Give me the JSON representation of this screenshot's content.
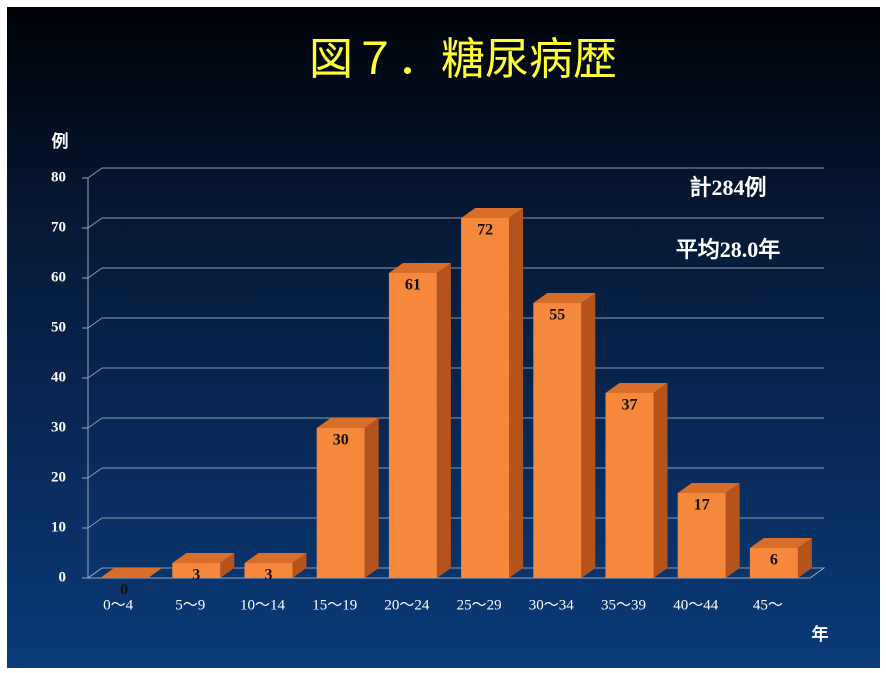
{
  "chart_data": {
    "type": "bar3d",
    "title": "図７．糖尿病歴",
    "y_label": "例",
    "x_label": "年",
    "annotations": [
      "計284例",
      "平均28.0年"
    ],
    "categories": [
      "0～4",
      "5～9",
      "10～14",
      "15～19",
      "20～24",
      "25～29",
      "30～34",
      "35～39",
      "40～44",
      "45～"
    ],
    "values": [
      0,
      3,
      3,
      30,
      61,
      72,
      55,
      37,
      17,
      6
    ],
    "color": "#f5883a",
    "ylim": [
      0,
      80
    ],
    "yticks": [
      0,
      10,
      20,
      30,
      40,
      50,
      60,
      70,
      80
    ],
    "grid": true
  }
}
